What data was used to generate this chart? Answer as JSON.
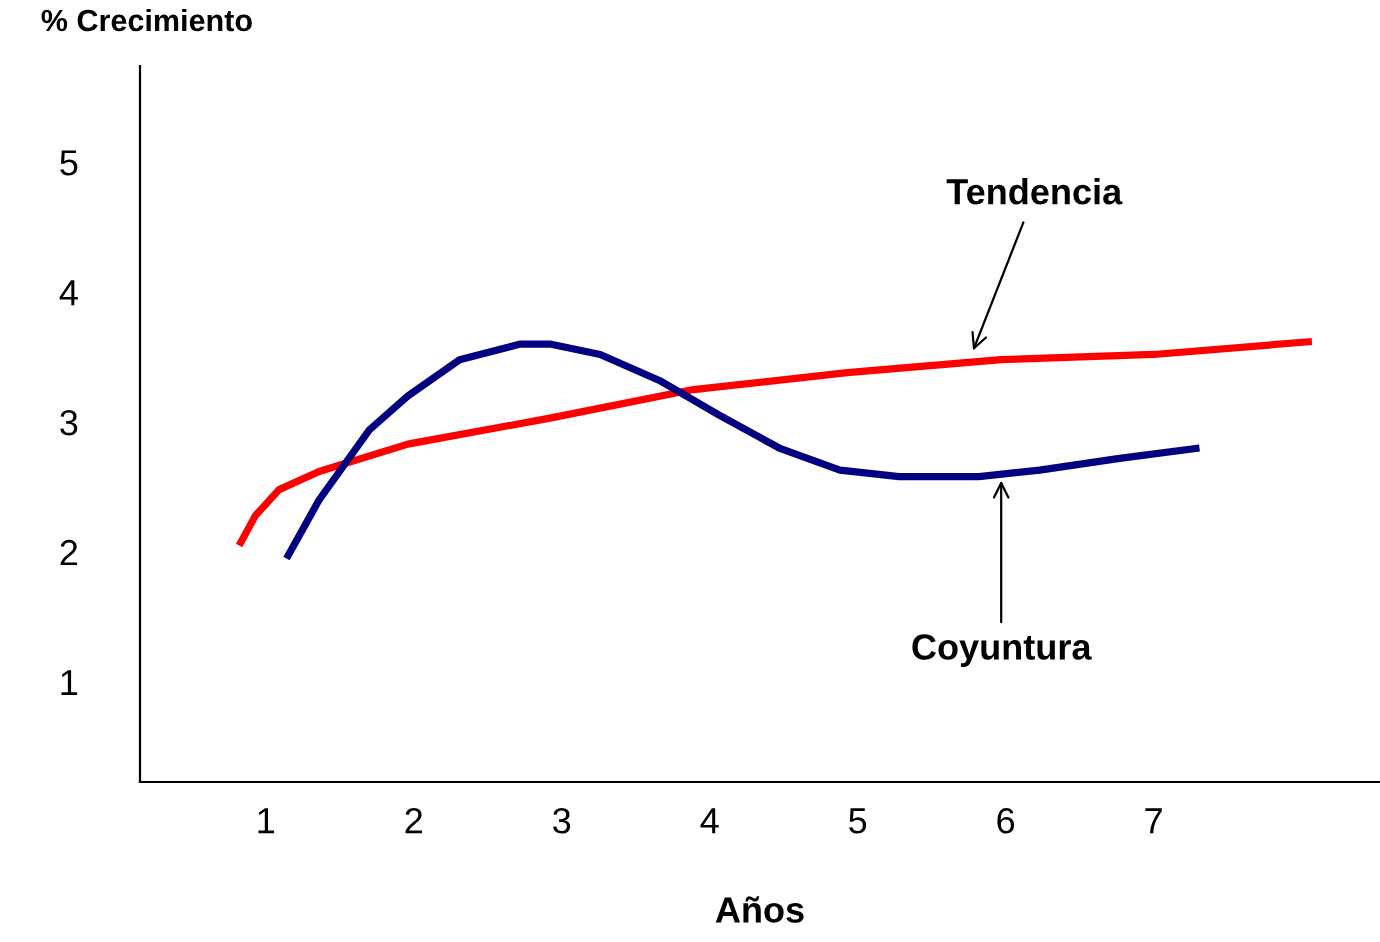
{
  "chart_data": {
    "type": "line",
    "ylabel": "% Crecimiento",
    "xlabel": "Años",
    "xlim": [
      0.15,
      8.53
    ],
    "ylim": [
      0.23,
      5.74
    ],
    "xticks": [
      1,
      2,
      3,
      4,
      5,
      6,
      7
    ],
    "yticks": [
      1,
      2,
      3,
      4,
      5
    ],
    "grid": false,
    "legend": false,
    "marker": "none",
    "line_style": "solid",
    "series": [
      {
        "color": "#ff0000",
        "x": [
          0.82,
          0.93,
          1.09,
          1.36,
          1.96,
          2.92,
          3.89,
          4.93,
          5.97,
          7.0,
          8.07
        ],
        "values": [
          2.05,
          2.28,
          2.48,
          2.62,
          2.83,
          3.03,
          3.25,
          3.38,
          3.48,
          3.52,
          3.62
        ]
      },
      {
        "color": "#000080",
        "x": [
          1.14,
          1.36,
          1.7,
          1.96,
          2.31,
          2.72,
          2.92,
          3.26,
          3.66,
          4.07,
          4.47,
          4.88,
          5.28,
          5.82,
          6.23,
          6.77,
          7.31
        ],
        "values": [
          1.95,
          2.4,
          2.94,
          3.2,
          3.48,
          3.6,
          3.6,
          3.52,
          3.32,
          3.05,
          2.8,
          2.63,
          2.58,
          2.58,
          2.63,
          2.72,
          2.8
        ]
      }
    ],
    "annotations": [
      {
        "text": "Tendencia",
        "x": 5.78,
        "y": 3.55
      },
      {
        "text": "Coyuntura",
        "x": 5.97,
        "y": 2.55
      }
    ]
  }
}
